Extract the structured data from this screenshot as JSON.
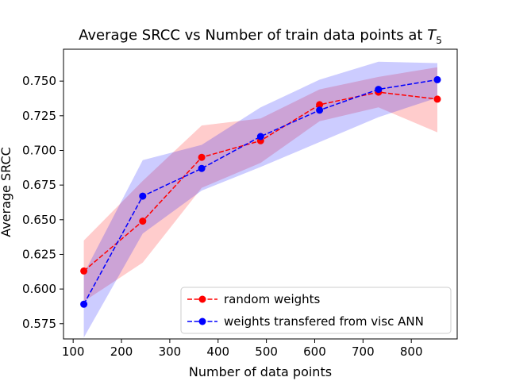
{
  "chart_data": {
    "type": "line",
    "title": "Average SRCC vs Number of train data points at ",
    "title_math": "T",
    "title_math_sub": "5",
    "xlabel": "Number of data points",
    "ylabel": "Average SRCC",
    "xlim": [
      80,
      895
    ],
    "ylim": [
      0.564,
      0.773
    ],
    "xticks": [
      100,
      200,
      300,
      400,
      500,
      600,
      700,
      800
    ],
    "yticks": [
      0.575,
      0.6,
      0.625,
      0.65,
      0.675,
      0.7,
      0.725,
      0.75
    ],
    "ytick_labels": [
      "0.575",
      "0.600",
      "0.625",
      "0.650",
      "0.675",
      "0.700",
      "0.725",
      "0.750"
    ],
    "grid": false,
    "legend_position": "lower-right",
    "x": [
      122,
      244,
      366,
      488,
      610,
      732,
      854
    ],
    "series": [
      {
        "name": "random weights",
        "color": "#ff0000",
        "band_color": "#ff0000",
        "linestyle": "dashed",
        "marker": "circle",
        "values": [
          0.613,
          0.649,
          0.695,
          0.707,
          0.733,
          0.742,
          0.737
        ],
        "band_lower": [
          0.591,
          0.619,
          0.673,
          0.691,
          0.721,
          0.731,
          0.713
        ],
        "band_upper": [
          0.635,
          0.678,
          0.718,
          0.723,
          0.744,
          0.753,
          0.76
        ]
      },
      {
        "name": "weights transfered from visc ANN",
        "color": "#0000ff",
        "band_color": "#0000ff",
        "linestyle": "dashed",
        "marker": "circle",
        "values": [
          0.589,
          0.667,
          0.687,
          0.71,
          0.729,
          0.744,
          0.751
        ],
        "band_lower": [
          0.565,
          0.64,
          0.671,
          0.688,
          0.706,
          0.724,
          0.738
        ],
        "band_upper": [
          0.611,
          0.693,
          0.704,
          0.731,
          0.751,
          0.764,
          0.763
        ]
      }
    ]
  }
}
